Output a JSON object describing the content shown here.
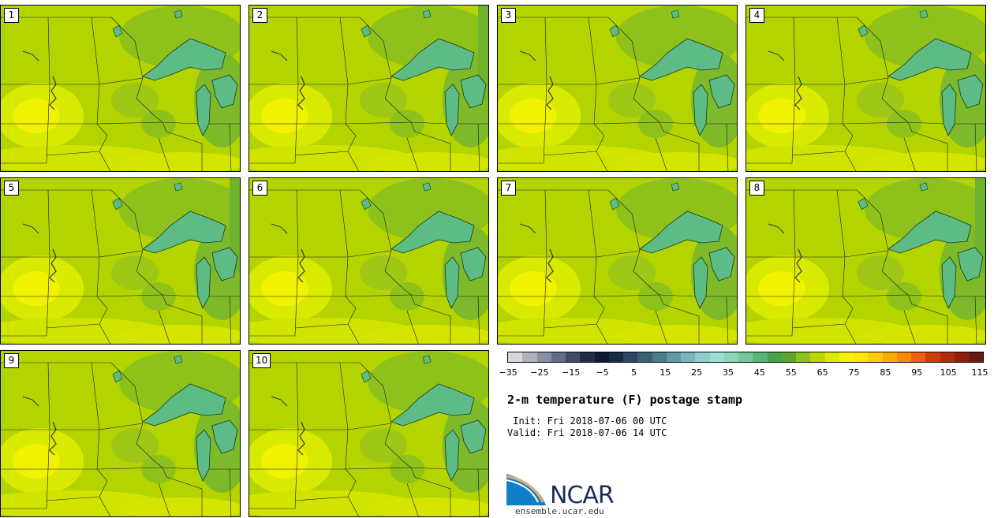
{
  "panels": [
    {
      "label": "1"
    },
    {
      "label": "2"
    },
    {
      "label": "3"
    },
    {
      "label": "4"
    },
    {
      "label": "5"
    },
    {
      "label": "6"
    },
    {
      "label": "7"
    },
    {
      "label": "8"
    },
    {
      "label": "9"
    },
    {
      "label": "10"
    }
  ],
  "colorbar": {
    "colors": [
      "#d4d7de",
      "#acb1bc",
      "#8790a1",
      "#626c85",
      "#414b66",
      "#222c48",
      "#0d1a33",
      "#182a45",
      "#2a4660",
      "#3c5f78",
      "#4e7a8e",
      "#6397a6",
      "#7ab4bd",
      "#91cdcd",
      "#9ae0d6",
      "#8ed4b6",
      "#74c59a",
      "#5bb37a",
      "#47a14f",
      "#5aa52f",
      "#8ec11a",
      "#bad800",
      "#dbe900",
      "#f2f200",
      "#ffe600",
      "#ffcc00",
      "#ffaa00",
      "#ff8800",
      "#f06010",
      "#d03c0c",
      "#b42a0e",
      "#8e1e10",
      "#6b1810"
    ],
    "ticks": [
      "−35",
      "−25",
      "−15",
      "−5",
      "5",
      "15",
      "25",
      "35",
      "45",
      "55",
      "65",
      "75",
      "85",
      "95",
      "105",
      "115"
    ]
  },
  "title": "2-m temperature (F) postage stamp",
  "init": " Init: Fri 2018-07-06 00 UTC",
  "valid": "Valid: Fri 2018-07-06 14 UTC",
  "logo": {
    "text": "NCAR",
    "url": "ensemble.ucar.edu"
  }
}
